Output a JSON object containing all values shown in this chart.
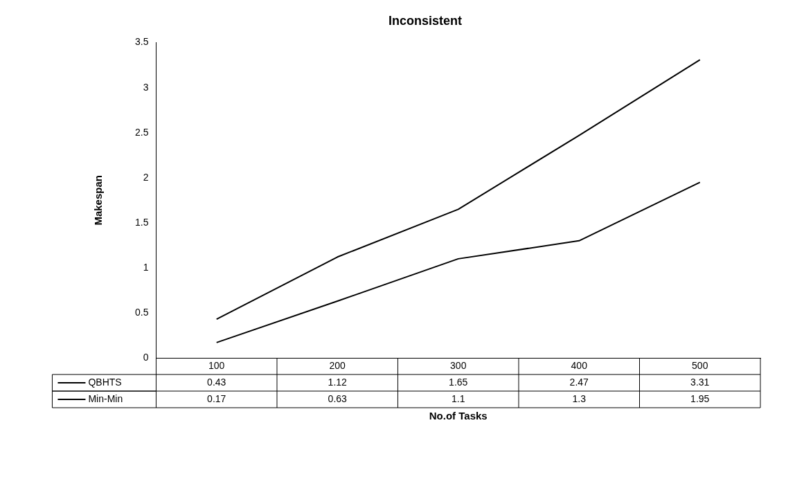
{
  "chart_data": {
    "type": "line",
    "title": "Inconsistent",
    "xlabel": "No.of Tasks",
    "ylabel": "Makespan",
    "categories": [
      "100",
      "200",
      "300",
      "400",
      "500"
    ],
    "series": [
      {
        "name": "QBHTS",
        "color": "#000000",
        "values": [
          0.43,
          1.12,
          1.65,
          2.47,
          3.31
        ]
      },
      {
        "name": "Min-Min",
        "color": "#000000",
        "values": [
          0.17,
          0.63,
          1.1,
          1.3,
          1.95
        ]
      }
    ],
    "ylim": [
      0,
      3.5
    ],
    "yticks": [
      0,
      0.5,
      1,
      1.5,
      2,
      2.5,
      3,
      3.5
    ],
    "grid": false,
    "legend": "bottom",
    "marker": "none",
    "line_style": "solid",
    "data_labels": true
  }
}
